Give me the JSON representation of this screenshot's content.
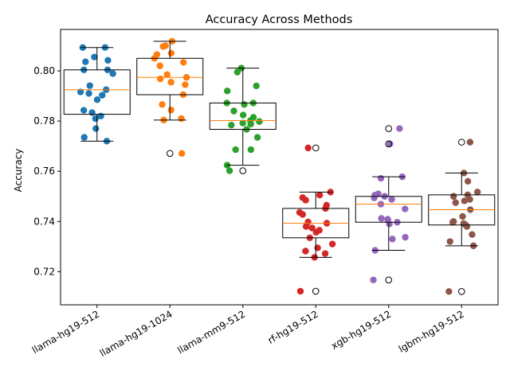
{
  "chart_data": {
    "type": "box",
    "title": "Accuracy Across Methods",
    "xlabel": "",
    "ylabel": "Accuracy",
    "ylim": [
      0.7068,
      0.8165
    ],
    "yticks": [
      0.72,
      0.74,
      0.76,
      0.78,
      0.8
    ],
    "ytick_labels": [
      "0.72",
      "0.74",
      "0.76",
      "0.78",
      "0.80"
    ],
    "grid": false,
    "box_edge_color": "#000000",
    "median_color": "#ff7f0e",
    "categories": [
      {
        "label": "llama-hg19-512",
        "color": "#1f77b4",
        "box": {
          "q1": 0.7827,
          "median": 0.7925,
          "q3": 0.8004,
          "whisker_low": 0.772,
          "whisker_high": 0.8093
        },
        "outliers": [],
        "points": [
          0.8093,
          0.8093,
          0.8055,
          0.8042,
          0.8036,
          0.8004,
          0.8004,
          0.7989,
          0.7941,
          0.7925,
          0.7916,
          0.791,
          0.7903,
          0.7885,
          0.7843,
          0.7834,
          0.782,
          0.781,
          0.777,
          0.7735,
          0.772
        ]
      },
      {
        "label": "llama-hg19-1024",
        "color": "#ff7f0e",
        "box": {
          "q1": 0.7905,
          "median": 0.7974,
          "q3": 0.805,
          "whisker_low": 0.7804,
          "whisker_high": 0.8118
        },
        "outliers": [
          0.7671
        ],
        "points": [
          0.8118,
          0.81,
          0.8097,
          0.807,
          0.8065,
          0.805,
          0.8034,
          0.802,
          0.7985,
          0.7974,
          0.7968,
          0.7955,
          0.7945,
          0.7905,
          0.7866,
          0.7844,
          0.781,
          0.7804,
          0.7671
        ]
      },
      {
        "label": "llama-mm9-512",
        "color": "#2ca02c",
        "box": {
          "q1": 0.7767,
          "median": 0.7802,
          "q3": 0.7872,
          "whisker_low": 0.7624,
          "whisker_high": 0.8011
        },
        "outliers": [
          0.7602
        ],
        "points": [
          0.8011,
          0.7995,
          0.794,
          0.792,
          0.7872,
          0.7872,
          0.7866,
          0.784,
          0.7824,
          0.7815,
          0.7802,
          0.7798,
          0.7792,
          0.7788,
          0.7784,
          0.7767,
          0.7735,
          0.7686,
          0.7686,
          0.7624,
          0.7602
        ]
      },
      {
        "label": "rf-hg19-512",
        "color": "#d62728",
        "box": {
          "q1": 0.7335,
          "median": 0.7393,
          "q3": 0.7452,
          "whisker_low": 0.7257,
          "whisker_high": 0.7517
        },
        "outliers": [
          0.7693,
          0.7122
        ],
        "points": [
          0.7693,
          0.7517,
          0.7505,
          0.7495,
          0.7485,
          0.7465,
          0.7452,
          0.7436,
          0.7428,
          0.7398,
          0.7393,
          0.738,
          0.7374,
          0.7365,
          0.7357,
          0.7335,
          0.731,
          0.7295,
          0.7282,
          0.7272,
          0.7257,
          0.7122
        ]
      },
      {
        "label": "xgb-hg19-512",
        "color": "#9467bd",
        "box": {
          "q1": 0.7397,
          "median": 0.7469,
          "q3": 0.75,
          "whisker_low": 0.7285,
          "whisker_high": 0.7578
        },
        "outliers": [
          0.777,
          0.7709,
          0.7167
        ],
        "points": [
          0.777,
          0.7709,
          0.7578,
          0.7572,
          0.751,
          0.7505,
          0.75,
          0.7494,
          0.7488,
          0.7469,
          0.745,
          0.7412,
          0.7409,
          0.7404,
          0.7397,
          0.739,
          0.7337,
          0.733,
          0.7285,
          0.7167
        ]
      },
      {
        "label": "lgbm-hg19-512",
        "color": "#8c564b",
        "box": {
          "q1": 0.7386,
          "median": 0.7447,
          "q3": 0.7506,
          "whisker_low": 0.7303,
          "whisker_high": 0.7593
        },
        "outliers": [
          0.7716,
          0.7121
        ],
        "points": [
          0.7716,
          0.7593,
          0.756,
          0.7517,
          0.7506,
          0.75,
          0.7488,
          0.7482,
          0.7475,
          0.7447,
          0.742,
          0.74,
          0.7397,
          0.7392,
          0.7386,
          0.738,
          0.7348,
          0.732,
          0.7303,
          0.7121
        ]
      }
    ]
  }
}
